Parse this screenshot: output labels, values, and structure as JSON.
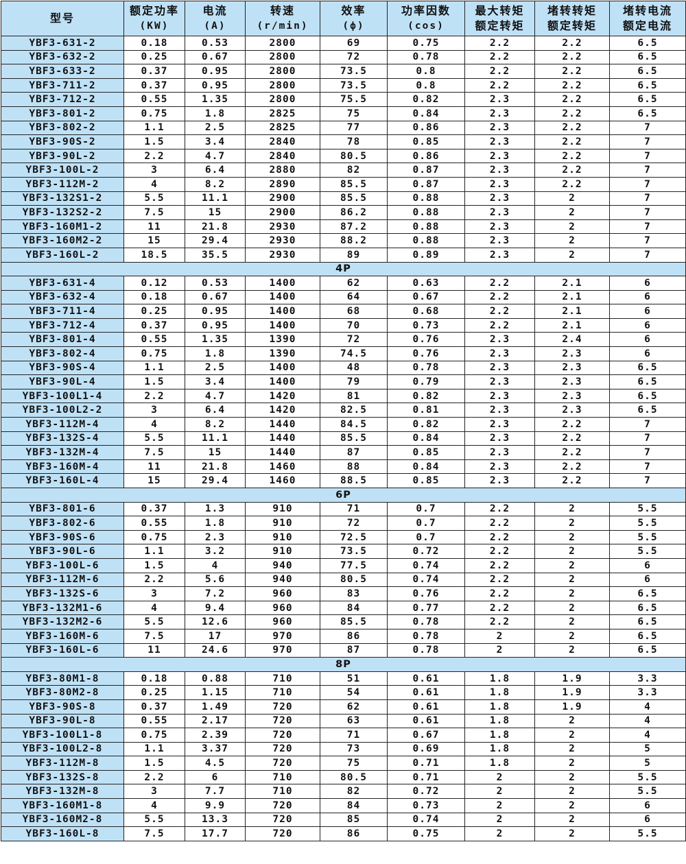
{
  "headers": [
    {
      "l1": "型号",
      "l2": ""
    },
    {
      "l1": "额定功率",
      "l2": "(KW)"
    },
    {
      "l1": "电流",
      "l2": "(A)"
    },
    {
      "l1": "转速",
      "l2": "(r/min)"
    },
    {
      "l1": "效率",
      "l2": "(ф)"
    },
    {
      "l1": "功率因数",
      "l2": "(cos)"
    },
    {
      "l1": "最大转矩",
      "l2": "额定转矩"
    },
    {
      "l1": "堵转转矩",
      "l2": "额定转矩"
    },
    {
      "l1": "堵转电流",
      "l2": "额定电流"
    }
  ],
  "colors": {
    "header_bg": "#bfe1f6",
    "model_bg": "#bfe1f6",
    "border": "#222222"
  },
  "sections": [
    {
      "label": "",
      "rows": [
        [
          "YBF3-631-2",
          "0.18",
          "0.53",
          "2800",
          "69",
          "0.75",
          "2.2",
          "2.2",
          "6.5"
        ],
        [
          "YBF3-632-2",
          "0.25",
          "0.67",
          "2800",
          "72",
          "0.78",
          "2.2",
          "2.2",
          "6.5"
        ],
        [
          "YBF3-633-2",
          "0.37",
          "0.95",
          "2800",
          "73.5",
          "0.8",
          "2.2",
          "2.2",
          "6.5"
        ],
        [
          "YBF3-711-2",
          "0.37",
          "0.95",
          "2800",
          "73.5",
          "0.8",
          "2.2",
          "2.2",
          "6.5"
        ],
        [
          "YBF3-712-2",
          "0.55",
          "1.35",
          "2800",
          "75.5",
          "0.82",
          "2.3",
          "2.2",
          "6.5"
        ],
        [
          "YBF3-801-2",
          "0.75",
          "1.8",
          "2825",
          "75",
          "0.84",
          "2.3",
          "2.2",
          "6.5"
        ],
        [
          "YBF3-802-2",
          "1.1",
          "2.5",
          "2825",
          "77",
          "0.86",
          "2.3",
          "2.2",
          "7"
        ],
        [
          "YBF3-90S-2",
          "1.5",
          "3.4",
          "2840",
          "78",
          "0.85",
          "2.3",
          "2.2",
          "7"
        ],
        [
          "YBF3-90L-2",
          "2.2",
          "4.7",
          "2840",
          "80.5",
          "0.86",
          "2.3",
          "2.2",
          "7"
        ],
        [
          "YBF3-100L-2",
          "3",
          "6.4",
          "2880",
          "82",
          "0.87",
          "2.3",
          "2.2",
          "7"
        ],
        [
          "YBF3-112M-2",
          "4",
          "8.2",
          "2890",
          "85.5",
          "0.87",
          "2.3",
          "2.2",
          "7"
        ],
        [
          "YBF3-132S1-2",
          "5.5",
          "11.1",
          "2900",
          "85.5",
          "0.88",
          "2.3",
          "2",
          "7"
        ],
        [
          "YBF3-132S2-2",
          "7.5",
          "15",
          "2900",
          "86.2",
          "0.88",
          "2.3",
          "2",
          "7"
        ],
        [
          "YBF3-160M1-2",
          "11",
          "21.8",
          "2930",
          "87.2",
          "0.88",
          "2.3",
          "2",
          "7"
        ],
        [
          "YBF3-160M2-2",
          "15",
          "29.4",
          "2930",
          "88.2",
          "0.88",
          "2.3",
          "2",
          "7"
        ],
        [
          "YBF3-160L-2",
          "18.5",
          "35.5",
          "2930",
          "89",
          "0.89",
          "2.3",
          "2",
          "7"
        ]
      ]
    },
    {
      "label": "4P",
      "rows": [
        [
          "YBF3-631-4",
          "0.12",
          "0.53",
          "1400",
          "62",
          "0.63",
          "2.2",
          "2.1",
          "6"
        ],
        [
          "YBF3-632-4",
          "0.18",
          "0.67",
          "1400",
          "64",
          "0.67",
          "2.2",
          "2.1",
          "6"
        ],
        [
          "YBF3-711-4",
          "0.25",
          "0.95",
          "1400",
          "68",
          "0.68",
          "2.2",
          "2.1",
          "6"
        ],
        [
          "YBF3-712-4",
          "0.37",
          "0.95",
          "1400",
          "70",
          "0.73",
          "2.2",
          "2.1",
          "6"
        ],
        [
          "YBF3-801-4",
          "0.55",
          "1.35",
          "1390",
          "72",
          "0.76",
          "2.3",
          "2.4",
          "6"
        ],
        [
          "YBF3-802-4",
          "0.75",
          "1.8",
          "1390",
          "74.5",
          "0.76",
          "2.3",
          "2.3",
          "6"
        ],
        [
          "YBF3-90S-4",
          "1.1",
          "2.5",
          "1400",
          "48",
          "0.78",
          "2.3",
          "2.3",
          "6.5"
        ],
        [
          "YBF3-90L-4",
          "1.5",
          "3.4",
          "1400",
          "79",
          "0.79",
          "2.3",
          "2.3",
          "6.5"
        ],
        [
          "YBF3-100L1-4",
          "2.2",
          "4.7",
          "1420",
          "81",
          "0.82",
          "2.3",
          "2.3",
          "6.5"
        ],
        [
          "YBF3-100L2-2",
          "3",
          "6.4",
          "1420",
          "82.5",
          "0.81",
          "2.3",
          "2.3",
          "6.5"
        ],
        [
          "YBF3-112M-4",
          "4",
          "8.2",
          "1440",
          "84.5",
          "0.82",
          "2.3",
          "2.2",
          "7"
        ],
        [
          "YBF3-132S-4",
          "5.5",
          "11.1",
          "1440",
          "85.5",
          "0.84",
          "2.3",
          "2.2",
          "7"
        ],
        [
          "YBF3-132M-4",
          "7.5",
          "15",
          "1440",
          "87",
          "0.85",
          "2.3",
          "2.2",
          "7"
        ],
        [
          "YBF3-160M-4",
          "11",
          "21.8",
          "1460",
          "88",
          "0.84",
          "2.3",
          "2.2",
          "7"
        ],
        [
          "YBF3-160L-4",
          "15",
          "29.4",
          "1460",
          "88.5",
          "0.85",
          "2.3",
          "2.2",
          "7"
        ]
      ]
    },
    {
      "label": "6P",
      "rows": [
        [
          "YBF3-801-6",
          "0.37",
          "1.3",
          "910",
          "71",
          "0.7",
          "2.2",
          "2",
          "5.5"
        ],
        [
          "YBF3-802-6",
          "0.55",
          "1.8",
          "910",
          "72",
          "0.7",
          "2.2",
          "2",
          "5.5"
        ],
        [
          "YBF3-90S-6",
          "0.75",
          "2.3",
          "910",
          "72.5",
          "0.7",
          "2.2",
          "2",
          "5.5"
        ],
        [
          "YBF3-90L-6",
          "1.1",
          "3.2",
          "910",
          "73.5",
          "0.72",
          "2.2",
          "2",
          "5.5"
        ],
        [
          "YBF3-100L-6",
          "1.5",
          "4",
          "940",
          "77.5",
          "0.74",
          "2.2",
          "2",
          "6"
        ],
        [
          "YBF3-112M-6",
          "2.2",
          "5.6",
          "940",
          "80.5",
          "0.74",
          "2.2",
          "2",
          "6"
        ],
        [
          "YBF3-132S-6",
          "3",
          "7.2",
          "960",
          "83",
          "0.76",
          "2.2",
          "2",
          "6.5"
        ],
        [
          "YBF3-132M1-6",
          "4",
          "9.4",
          "960",
          "84",
          "0.77",
          "2.2",
          "2",
          "6.5"
        ],
        [
          "YBF3-132M2-6",
          "5.5",
          "12.6",
          "960",
          "85.5",
          "0.78",
          "2.2",
          "2",
          "6.5"
        ],
        [
          "YBF3-160M-6",
          "7.5",
          "17",
          "970",
          "86",
          "0.78",
          "2",
          "2",
          "6.5"
        ],
        [
          "YBF3-160L-6",
          "11",
          "24.6",
          "970",
          "87",
          "0.78",
          "2",
          "2",
          "6.5"
        ]
      ]
    },
    {
      "label": "8P",
      "rows": [
        [
          "YBF3-80M1-8",
          "0.18",
          "0.88",
          "710",
          "51",
          "0.61",
          "1.8",
          "1.9",
          "3.3"
        ],
        [
          "YBF3-80M2-8",
          "0.25",
          "1.15",
          "710",
          "54",
          "0.61",
          "1.8",
          "1.9",
          "3.3"
        ],
        [
          "YBF3-90S-8",
          "0.37",
          "1.49",
          "720",
          "62",
          "0.61",
          "1.8",
          "1.9",
          "4"
        ],
        [
          "YBF3-90L-8",
          "0.55",
          "2.17",
          "720",
          "63",
          "0.61",
          "1.8",
          "2",
          "4"
        ],
        [
          "YBF3-100L1-8",
          "0.75",
          "2.39",
          "720",
          "71",
          "0.67",
          "1.8",
          "2",
          "4"
        ],
        [
          "YBF3-100L2-8",
          "1.1",
          "3.37",
          "720",
          "73",
          "0.69",
          "1.8",
          "2",
          "5"
        ],
        [
          "YBF3-112M-8",
          "1.5",
          "4.5",
          "720",
          "75",
          "0.71",
          "1.8",
          "2",
          "5"
        ],
        [
          "YBF3-132S-8",
          "2.2",
          "6",
          "710",
          "80.5",
          "0.71",
          "2",
          "2",
          "5.5"
        ],
        [
          "YBF3-132M-8",
          "3",
          "7.7",
          "710",
          "82",
          "0.72",
          "2",
          "2",
          "5.5"
        ],
        [
          "YBF3-160M1-8",
          "4",
          "9.9",
          "720",
          "84",
          "0.73",
          "2",
          "2",
          "6"
        ],
        [
          "YBF3-160M2-8",
          "5.5",
          "13.3",
          "720",
          "85",
          "0.74",
          "2",
          "2",
          "6"
        ],
        [
          "YBF3-160L-8",
          "7.5",
          "17.7",
          "720",
          "86",
          "0.75",
          "2",
          "2",
          "5.5"
        ]
      ]
    }
  ]
}
